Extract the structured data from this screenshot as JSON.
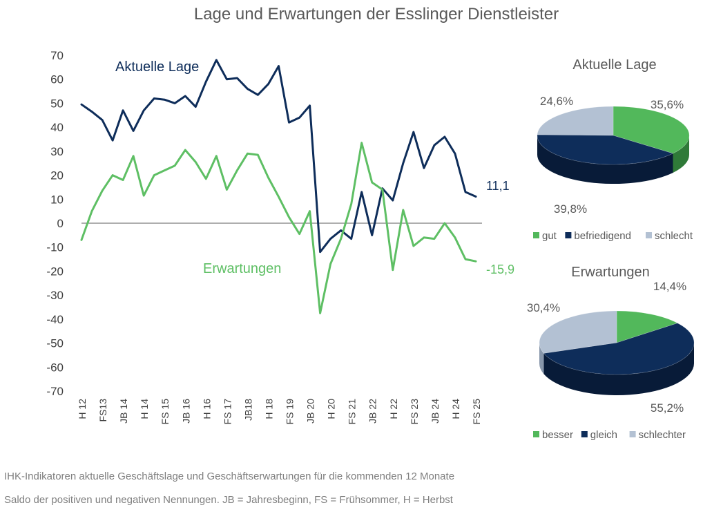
{
  "chart_data": [
    {
      "type": "line",
      "title": "Lage und Erwartungen der Esslinger Dienstleister",
      "ylim": [
        -70,
        70
      ],
      "yticks": [
        70,
        60,
        50,
        40,
        30,
        20,
        10,
        0,
        -10,
        -20,
        -30,
        -40,
        -50,
        -60,
        -70
      ],
      "tick_labels": [
        "H 12",
        "FS13",
        "JB 14",
        "H 14",
        "FS 15",
        "JB 16",
        "H 16",
        "FS 17",
        "JB18",
        "H 18",
        "FS 19",
        "JB 20",
        "H 20",
        "FS 21",
        "JB 22",
        "H 22",
        "FS 23",
        "JB 24",
        "H 24",
        "FS 25"
      ],
      "n_points": 39,
      "series": [
        {
          "name": "Aktuelle Lage",
          "color": "#0e2d5a",
          "end_label": "11,1",
          "values": [
            49.5,
            46.5,
            43,
            34.5,
            47,
            38.5,
            47,
            52,
            51.5,
            50,
            53,
            48.5,
            59,
            68,
            60,
            60.5,
            56,
            53.5,
            58,
            65.5,
            42,
            44,
            49,
            -12,
            -6.5,
            -3,
            -6.5,
            13,
            -5,
            14.5,
            9.5,
            25,
            38,
            23,
            32.5,
            36,
            29,
            13,
            11.1
          ]
        },
        {
          "name": "Erwartungen",
          "color": "#5ebf64",
          "end_label": "-15,9",
          "values": [
            -7,
            5,
            13.5,
            20,
            18,
            28,
            11.5,
            20,
            22,
            24,
            30.5,
            25.5,
            18.5,
            28,
            14,
            22,
            29,
            28.5,
            19,
            11,
            2.5,
            -4.5,
            5,
            -37.5,
            -17,
            -6.5,
            8,
            33.5,
            17,
            14,
            -19.5,
            5.5,
            -9.5,
            -6,
            -6.5,
            0,
            -6,
            -15,
            -15.9
          ]
        }
      ]
    },
    {
      "type": "pie",
      "title": "Aktuelle Lage",
      "slices": [
        {
          "label": "gut",
          "value": 35.6,
          "text": "35,6%",
          "color": "#52b85b",
          "side": "#2f7a38"
        },
        {
          "label": "befriedigend",
          "value": 39.8,
          "text": "39,8%",
          "color": "#0e2d5a",
          "side": "#081b38"
        },
        {
          "label": "schlecht",
          "value": 24.6,
          "text": "24,6%",
          "color": "#b3c1d3",
          "side": "#8796aa"
        }
      ]
    },
    {
      "type": "pie",
      "title": "Erwartungen",
      "slices": [
        {
          "label": "besser",
          "value": 14.4,
          "text": "14,4%",
          "color": "#52b85b",
          "side": "#2f7a38"
        },
        {
          "label": "gleich",
          "value": 55.2,
          "text": "55,2%",
          "color": "#0e2d5a",
          "side": "#081b38"
        },
        {
          "label": "schlechter",
          "value": 30.4,
          "text": "30,4%",
          "color": "#b3c1d3",
          "side": "#8796aa"
        }
      ]
    }
  ],
  "footer": {
    "line1": "IHK-Indikatoren aktuelle Geschäftslage und Geschäftserwartungen für die kommenden 12 Monate",
    "line2": "Saldo der positiven und negativen Nennungen. JB = Jahresbeginn, FS = Frühsommer, H = Herbst"
  }
}
